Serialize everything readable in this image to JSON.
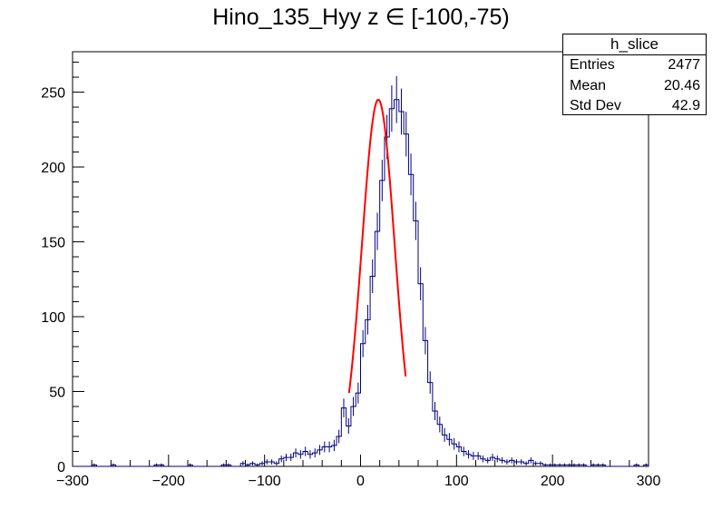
{
  "title": "Hino_135_Hyy z  ∈ [-100,-75)",
  "stats": {
    "name": "h_slice",
    "rows": [
      {
        "label": "Entries",
        "value": "2477"
      },
      {
        "label": "Mean",
        "value": "20.46"
      },
      {
        "label": "Std Dev",
        "value": "42.9"
      }
    ]
  },
  "colors": {
    "histogram": "#000080",
    "fit": "#ff0000",
    "axes": "#000000"
  },
  "chart_data": {
    "type": "histogram",
    "title": "Hino_135_Hyy z  ∈ [-100,-75)",
    "xlabel": "",
    "ylabel": "",
    "xlim": [
      -300,
      300
    ],
    "ylim": [
      0,
      277
    ],
    "x_ticks": [
      -300,
      -200,
      -100,
      0,
      100,
      200,
      300
    ],
    "y_ticks": [
      0,
      50,
      100,
      150,
      200,
      250
    ],
    "bin_width": 5,
    "x_start": -300,
    "counts": [
      0,
      0,
      0,
      0,
      1,
      0,
      0,
      0,
      1,
      0,
      0,
      0,
      0,
      0,
      0,
      0,
      0,
      1,
      1,
      0,
      0,
      0,
      0,
      0,
      1,
      0,
      0,
      0,
      0,
      0,
      0,
      1,
      1,
      0,
      0,
      2,
      1,
      2,
      1,
      2,
      3,
      3,
      2,
      5,
      6,
      6,
      9,
      8,
      10,
      8,
      9,
      11,
      13,
      13,
      14,
      20,
      39,
      27,
      40,
      49,
      82,
      98,
      127,
      157,
      191,
      220,
      239,
      245,
      237,
      222,
      195,
      164,
      122,
      84,
      56,
      37,
      28,
      21,
      18,
      15,
      13,
      10,
      8,
      7,
      7,
      5,
      4,
      6,
      5,
      4,
      3,
      4,
      3,
      3,
      2,
      4,
      2,
      2,
      1,
      1,
      1,
      1,
      1,
      1,
      1,
      1,
      1,
      0,
      1,
      1,
      1,
      0,
      0,
      0,
      0,
      0,
      0,
      1,
      0,
      1
    ],
    "fit": {
      "type": "gaussian",
      "constant": 245,
      "mean": 18.5,
      "sigma": 17,
      "range": [
        -12,
        47
      ]
    },
    "legend": "top-right",
    "stats_box": {
      "Entries": 2477,
      "Mean": 20.46,
      "Std Dev": 42.9
    }
  }
}
